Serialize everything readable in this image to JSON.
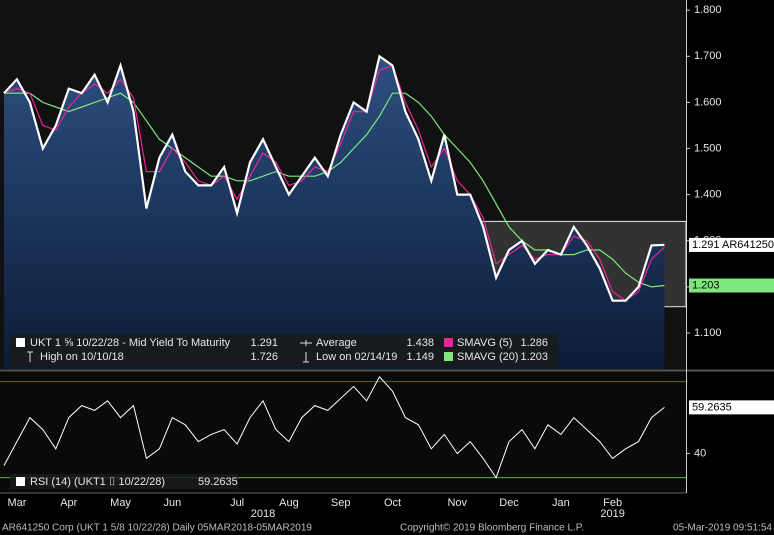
{
  "chart_data": [
    {
      "type": "line",
      "categories": [
        null,
        "Mar",
        null,
        null,
        null,
        "Apr",
        null,
        null,
        null,
        "May",
        null,
        null,
        null,
        "Jun",
        null,
        null,
        null,
        null,
        "Jul",
        null,
        null,
        null,
        "Aug",
        null,
        null,
        null,
        "Sep",
        null,
        null,
        null,
        "Oct",
        null,
        null,
        null,
        null,
        "Nov",
        null,
        null,
        null,
        "Dec",
        null,
        null,
        null,
        "Jan",
        null,
        null,
        null,
        "Feb",
        null,
        null,
        null,
        null
      ],
      "years": [
        {
          "index": 20,
          "label": "2018"
        },
        {
          "index": 47,
          "label": "2019"
        }
      ],
      "ylim": [
        1.022,
        1.822
      ],
      "yticks": [
        {
          "value": 1.1,
          "label": "1.100"
        },
        {
          "value": 1.2,
          "label": "1.200"
        },
        {
          "value": 1.3,
          "label": "1.300"
        },
        {
          "value": 1.4,
          "label": "1.400"
        },
        {
          "value": 1.5,
          "label": "1.500"
        },
        {
          "value": 1.6,
          "label": "1.600"
        },
        {
          "value": 1.7,
          "label": "1.700"
        },
        {
          "value": 1.8,
          "label": "1.800"
        }
      ],
      "series": [
        {
          "name": "UKT 1 ⅝ 10/22/28 - Mid Yield To Maturity",
          "legend_value": 1.291,
          "color": "#ffffff",
          "area": true,
          "values": [
            1.62,
            1.65,
            1.6,
            1.5,
            1.55,
            1.63,
            1.62,
            1.66,
            1.6,
            1.68,
            1.58,
            1.37,
            1.48,
            1.53,
            1.45,
            1.42,
            1.42,
            1.46,
            1.36,
            1.47,
            1.52,
            1.46,
            1.4,
            1.44,
            1.48,
            1.44,
            1.53,
            1.6,
            1.58,
            1.7,
            1.68,
            1.58,
            1.52,
            1.43,
            1.53,
            1.4,
            1.4,
            1.33,
            1.22,
            1.28,
            1.3,
            1.25,
            1.28,
            1.27,
            1.33,
            1.29,
            1.24,
            1.17,
            1.17,
            1.2,
            1.29,
            1.291
          ]
        },
        {
          "name": "SMAVG (5)",
          "legend_value": 1.286,
          "color": "#e8259a",
          "values": [
            1.62,
            1.63,
            1.62,
            1.55,
            1.54,
            1.59,
            1.62,
            1.64,
            1.62,
            1.65,
            1.61,
            1.45,
            1.45,
            1.5,
            1.47,
            1.43,
            1.42,
            1.44,
            1.39,
            1.44,
            1.49,
            1.47,
            1.42,
            1.43,
            1.46,
            1.45,
            1.51,
            1.58,
            1.58,
            1.67,
            1.68,
            1.6,
            1.54,
            1.46,
            1.5,
            1.43,
            1.4,
            1.35,
            1.25,
            1.27,
            1.29,
            1.26,
            1.27,
            1.27,
            1.31,
            1.3,
            1.26,
            1.19,
            1.17,
            1.19,
            1.26,
            1.286
          ]
        },
        {
          "name": "SMAVG (20)",
          "legend_value": 1.203,
          "color": "#7ee87e",
          "values": [
            1.62,
            1.62,
            1.62,
            1.6,
            1.59,
            1.58,
            1.59,
            1.6,
            1.61,
            1.62,
            1.6,
            1.56,
            1.52,
            1.5,
            1.48,
            1.46,
            1.44,
            1.44,
            1.43,
            1.43,
            1.44,
            1.45,
            1.44,
            1.44,
            1.44,
            1.45,
            1.47,
            1.5,
            1.53,
            1.57,
            1.62,
            1.62,
            1.6,
            1.57,
            1.53,
            1.5,
            1.47,
            1.43,
            1.38,
            1.33,
            1.3,
            1.28,
            1.28,
            1.27,
            1.27,
            1.28,
            1.28,
            1.26,
            1.23,
            1.21,
            1.2,
            1.203
          ]
        }
      ],
      "stats": [
        {
          "name": "High on 10/10/18",
          "value": 1.726
        },
        {
          "name": "Average",
          "value": 1.438
        },
        {
          "name": "Low on 02/14/19",
          "value": 1.149
        }
      ],
      "channel": {
        "start": 11,
        "upper": 1.342,
        "lower": 1.157
      },
      "price_tag": "1.291 AR641250",
      "sma_tag": 1.203
    },
    {
      "type": "line",
      "ylim": [
        24,
        74
      ],
      "yticks": [
        40
      ],
      "levels": [
        {
          "value": 70,
          "color": "#d42a2a"
        },
        {
          "value": 30,
          "color": "#3ec43e"
        }
      ],
      "series": [
        {
          "name": "RSI (14) (UKT1 ⌷ 10/22/28)",
          "legend_value": 59.2635,
          "color": "#ffffff",
          "values": [
            35,
            45,
            55,
            50,
            42,
            55,
            60,
            58,
            62,
            55,
            60,
            38,
            42,
            55,
            52,
            45,
            48,
            50,
            44,
            55,
            62,
            50,
            45,
            55,
            60,
            58,
            63,
            68,
            62,
            72,
            66,
            55,
            52,
            42,
            48,
            40,
            45,
            38,
            30,
            45,
            50,
            42,
            52,
            48,
            55,
            50,
            45,
            38,
            42,
            45,
            55,
            59.2635
          ]
        }
      ],
      "tag": 59.2635
    }
  ],
  "footer": {
    "left": "AR641250 Corp (UKT 1 5/8 10/22/28)  Daily 05MAR2018-05MAR2019",
    "center": "Copyright© 2019 Bloomberg Finance L.P.",
    "right": "05-Mar-2019 09:51:54"
  }
}
